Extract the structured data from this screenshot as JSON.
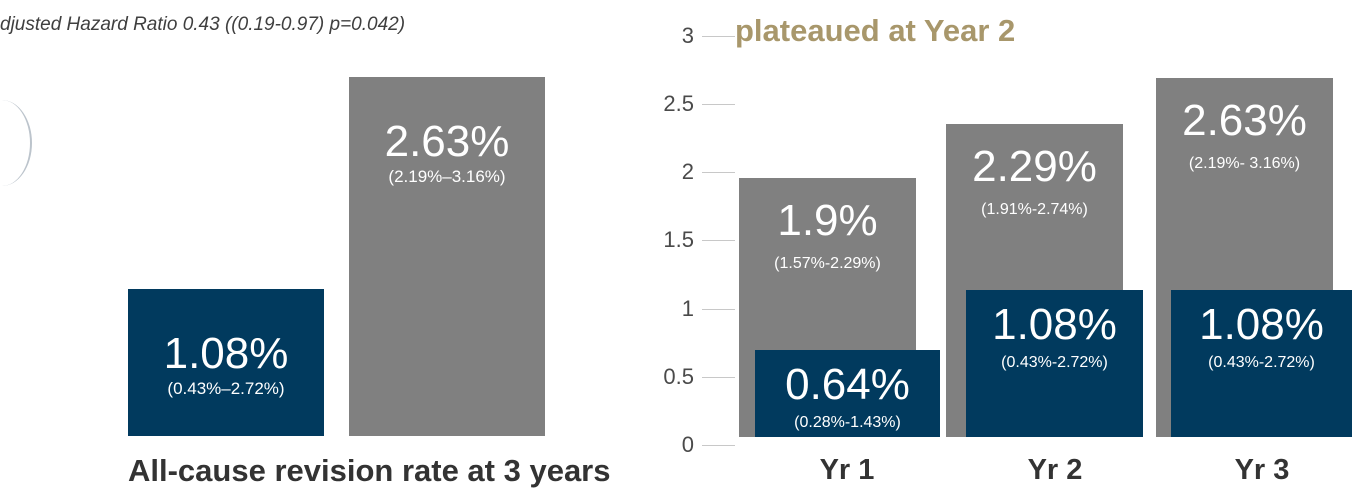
{
  "left_panel": {
    "hazard_text": "djusted Hazard Ratio 0.43 ((0.19-0.97) p=0.042)",
    "xlabel": "All-cause revision rate at 3 years"
  },
  "right_panel": {
    "title": "plateaued at Year 2"
  },
  "colors": {
    "navy": "#013a5e",
    "gray": "#808080",
    "gold": "#a8976b"
  },
  "chart_data": [
    {
      "type": "bar",
      "xlabel": "All-cause revision rate at 3 years",
      "ylim": [
        0,
        3
      ],
      "series": [
        {
          "color": "#013a5e",
          "values": [
            1.08
          ],
          "labels": [
            "1.08%"
          ],
          "ci": [
            "(0.43%–2.72%)"
          ]
        },
        {
          "color": "#808080",
          "values": [
            2.63
          ],
          "labels": [
            "2.63%"
          ],
          "ci": [
            "(2.19%–3.16%)"
          ]
        }
      ]
    },
    {
      "type": "bar",
      "title": "plateaued at Year 2",
      "categories": [
        "Yr 1",
        "Yr 2",
        "Yr 3"
      ],
      "yticks": [
        "0",
        "0.5",
        "1",
        "1.5",
        "2",
        "2.5",
        "3"
      ],
      "ylim": [
        0,
        3
      ],
      "grid": false,
      "series": [
        {
          "color": "#808080",
          "values": [
            1.9,
            2.29,
            2.63
          ],
          "labels": [
            "1.9%",
            "2.29%",
            "2.63%"
          ],
          "ci": [
            "(1.57%-2.29%)",
            "(1.91%-2.74%)",
            "(2.19%- 3.16%)"
          ]
        },
        {
          "color": "#013a5e",
          "values": [
            0.64,
            1.08,
            1.08
          ],
          "labels": [
            "0.64%",
            "1.08%",
            "1.08%"
          ],
          "ci": [
            "(0.28%-1.43%)",
            "(0.43%-2.72%)",
            "(0.43%-2.72%)"
          ]
        }
      ]
    }
  ]
}
